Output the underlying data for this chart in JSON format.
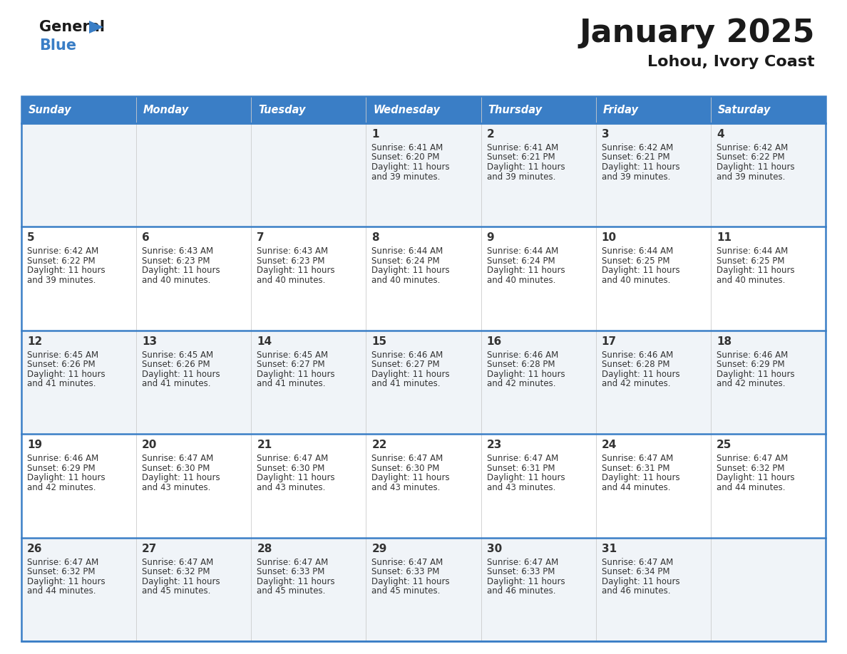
{
  "title": "January 2025",
  "subtitle": "Lohou, Ivory Coast",
  "header_bg": "#3A7EC6",
  "header_text_color": "#FFFFFF",
  "cell_bg_even": "#F0F4F8",
  "cell_bg_odd": "#FFFFFF",
  "border_color": "#3A7EC6",
  "row_line_color": "#3A7EC6",
  "text_color": "#333333",
  "days_of_week": [
    "Sunday",
    "Monday",
    "Tuesday",
    "Wednesday",
    "Thursday",
    "Friday",
    "Saturday"
  ],
  "calendar_data": [
    [
      {
        "day": "",
        "sunrise": "",
        "sunset": "",
        "daylight": ""
      },
      {
        "day": "",
        "sunrise": "",
        "sunset": "",
        "daylight": ""
      },
      {
        "day": "",
        "sunrise": "",
        "sunset": "",
        "daylight": ""
      },
      {
        "day": "1",
        "sunrise": "6:41 AM",
        "sunset": "6:20 PM",
        "daylight": "11 hours\nand 39 minutes."
      },
      {
        "day": "2",
        "sunrise": "6:41 AM",
        "sunset": "6:21 PM",
        "daylight": "11 hours\nand 39 minutes."
      },
      {
        "day": "3",
        "sunrise": "6:42 AM",
        "sunset": "6:21 PM",
        "daylight": "11 hours\nand 39 minutes."
      },
      {
        "day": "4",
        "sunrise": "6:42 AM",
        "sunset": "6:22 PM",
        "daylight": "11 hours\nand 39 minutes."
      }
    ],
    [
      {
        "day": "5",
        "sunrise": "6:42 AM",
        "sunset": "6:22 PM",
        "daylight": "11 hours\nand 39 minutes."
      },
      {
        "day": "6",
        "sunrise": "6:43 AM",
        "sunset": "6:23 PM",
        "daylight": "11 hours\nand 40 minutes."
      },
      {
        "day": "7",
        "sunrise": "6:43 AM",
        "sunset": "6:23 PM",
        "daylight": "11 hours\nand 40 minutes."
      },
      {
        "day": "8",
        "sunrise": "6:44 AM",
        "sunset": "6:24 PM",
        "daylight": "11 hours\nand 40 minutes."
      },
      {
        "day": "9",
        "sunrise": "6:44 AM",
        "sunset": "6:24 PM",
        "daylight": "11 hours\nand 40 minutes."
      },
      {
        "day": "10",
        "sunrise": "6:44 AM",
        "sunset": "6:25 PM",
        "daylight": "11 hours\nand 40 minutes."
      },
      {
        "day": "11",
        "sunrise": "6:44 AM",
        "sunset": "6:25 PM",
        "daylight": "11 hours\nand 40 minutes."
      }
    ],
    [
      {
        "day": "12",
        "sunrise": "6:45 AM",
        "sunset": "6:26 PM",
        "daylight": "11 hours\nand 41 minutes."
      },
      {
        "day": "13",
        "sunrise": "6:45 AM",
        "sunset": "6:26 PM",
        "daylight": "11 hours\nand 41 minutes."
      },
      {
        "day": "14",
        "sunrise": "6:45 AM",
        "sunset": "6:27 PM",
        "daylight": "11 hours\nand 41 minutes."
      },
      {
        "day": "15",
        "sunrise": "6:46 AM",
        "sunset": "6:27 PM",
        "daylight": "11 hours\nand 41 minutes."
      },
      {
        "day": "16",
        "sunrise": "6:46 AM",
        "sunset": "6:28 PM",
        "daylight": "11 hours\nand 42 minutes."
      },
      {
        "day": "17",
        "sunrise": "6:46 AM",
        "sunset": "6:28 PM",
        "daylight": "11 hours\nand 42 minutes."
      },
      {
        "day": "18",
        "sunrise": "6:46 AM",
        "sunset": "6:29 PM",
        "daylight": "11 hours\nand 42 minutes."
      }
    ],
    [
      {
        "day": "19",
        "sunrise": "6:46 AM",
        "sunset": "6:29 PM",
        "daylight": "11 hours\nand 42 minutes."
      },
      {
        "day": "20",
        "sunrise": "6:47 AM",
        "sunset": "6:30 PM",
        "daylight": "11 hours\nand 43 minutes."
      },
      {
        "day": "21",
        "sunrise": "6:47 AM",
        "sunset": "6:30 PM",
        "daylight": "11 hours\nand 43 minutes."
      },
      {
        "day": "22",
        "sunrise": "6:47 AM",
        "sunset": "6:30 PM",
        "daylight": "11 hours\nand 43 minutes."
      },
      {
        "day": "23",
        "sunrise": "6:47 AM",
        "sunset": "6:31 PM",
        "daylight": "11 hours\nand 43 minutes."
      },
      {
        "day": "24",
        "sunrise": "6:47 AM",
        "sunset": "6:31 PM",
        "daylight": "11 hours\nand 44 minutes."
      },
      {
        "day": "25",
        "sunrise": "6:47 AM",
        "sunset": "6:32 PM",
        "daylight": "11 hours\nand 44 minutes."
      }
    ],
    [
      {
        "day": "26",
        "sunrise": "6:47 AM",
        "sunset": "6:32 PM",
        "daylight": "11 hours\nand 44 minutes."
      },
      {
        "day": "27",
        "sunrise": "6:47 AM",
        "sunset": "6:32 PM",
        "daylight": "11 hours\nand 45 minutes."
      },
      {
        "day": "28",
        "sunrise": "6:47 AM",
        "sunset": "6:33 PM",
        "daylight": "11 hours\nand 45 minutes."
      },
      {
        "day": "29",
        "sunrise": "6:47 AM",
        "sunset": "6:33 PM",
        "daylight": "11 hours\nand 45 minutes."
      },
      {
        "day": "30",
        "sunrise": "6:47 AM",
        "sunset": "6:33 PM",
        "daylight": "11 hours\nand 46 minutes."
      },
      {
        "day": "31",
        "sunrise": "6:47 AM",
        "sunset": "6:34 PM",
        "daylight": "11 hours\nand 46 minutes."
      },
      {
        "day": "",
        "sunrise": "",
        "sunset": "",
        "daylight": ""
      }
    ]
  ],
  "logo_general_color": "#1A1A1A",
  "logo_blue_color": "#3A7EC6",
  "logo_triangle_color": "#3A7EC6",
  "title_fontsize": 32,
  "subtitle_fontsize": 16,
  "header_fontsize": 10.5,
  "day_num_fontsize": 11,
  "cell_text_fontsize": 8.5
}
